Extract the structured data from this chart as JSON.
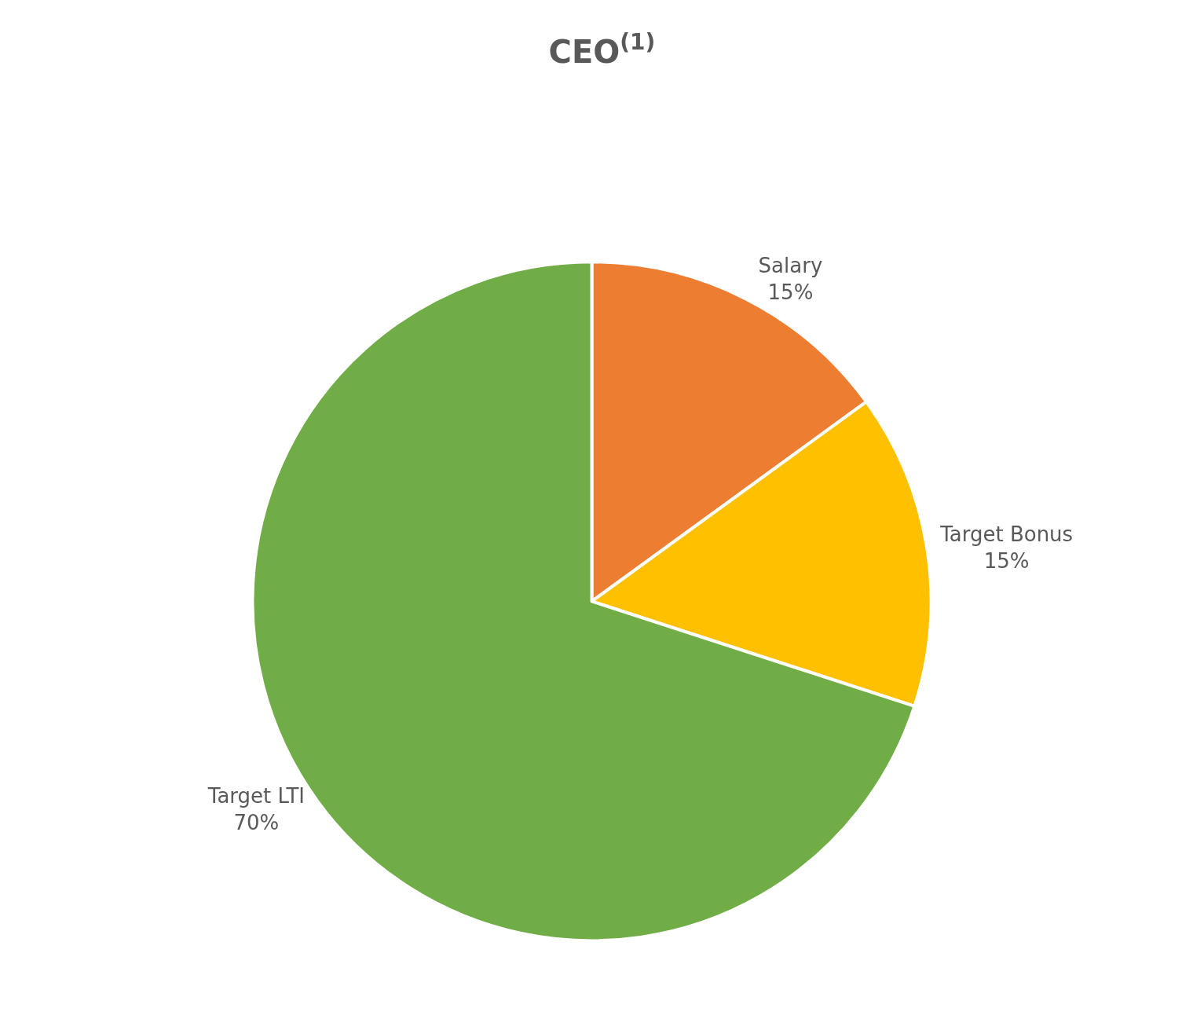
{
  "chart_data": {
    "type": "pie",
    "title": "CEO$^{(1)}$",
    "categories": [
      "Salary",
      "Target Bonus",
      "Target LTI"
    ],
    "values": [
      15,
      15,
      70
    ],
    "colors": [
      "#ed7d31",
      "#ffc000",
      "#70ad47"
    ],
    "value_labels": [
      "15%",
      "15%",
      "70%"
    ],
    "legend": false
  }
}
